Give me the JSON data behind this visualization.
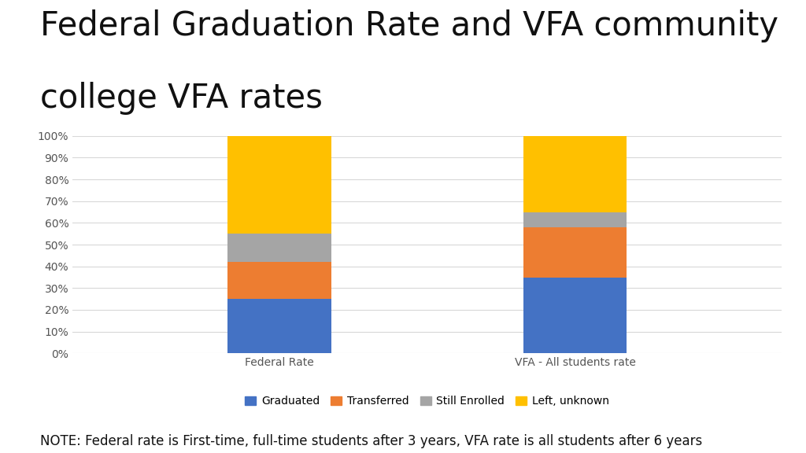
{
  "title_line1": "Federal Graduation Rate and VFA community",
  "title_line2": "college VFA rates",
  "categories": [
    "Federal Rate",
    "VFA - All students rate"
  ],
  "series": {
    "Graduated": [
      25,
      35
    ],
    "Transferred": [
      17,
      23
    ],
    "Still Enrolled": [
      13,
      7
    ],
    "Left, unknown": [
      45,
      35
    ]
  },
  "colors": {
    "Graduated": "#4472C4",
    "Transferred": "#ED7D31",
    "Still Enrolled": "#A5A5A5",
    "Left, unknown": "#FFC000"
  },
  "ylabel_ticks": [
    "0%",
    "10%",
    "20%",
    "30%",
    "40%",
    "50%",
    "60%",
    "70%",
    "80%",
    "90%",
    "100%"
  ],
  "ytick_vals": [
    0,
    10,
    20,
    30,
    40,
    50,
    60,
    70,
    80,
    90,
    100
  ],
  "note": "NOTE: Federal rate is First-time, full-time students after 3 years, VFA rate is all students after 6 years",
  "background_color": "#FFFFFF",
  "title_fontsize": 30,
  "axis_fontsize": 10,
  "legend_fontsize": 10,
  "note_fontsize": 12
}
